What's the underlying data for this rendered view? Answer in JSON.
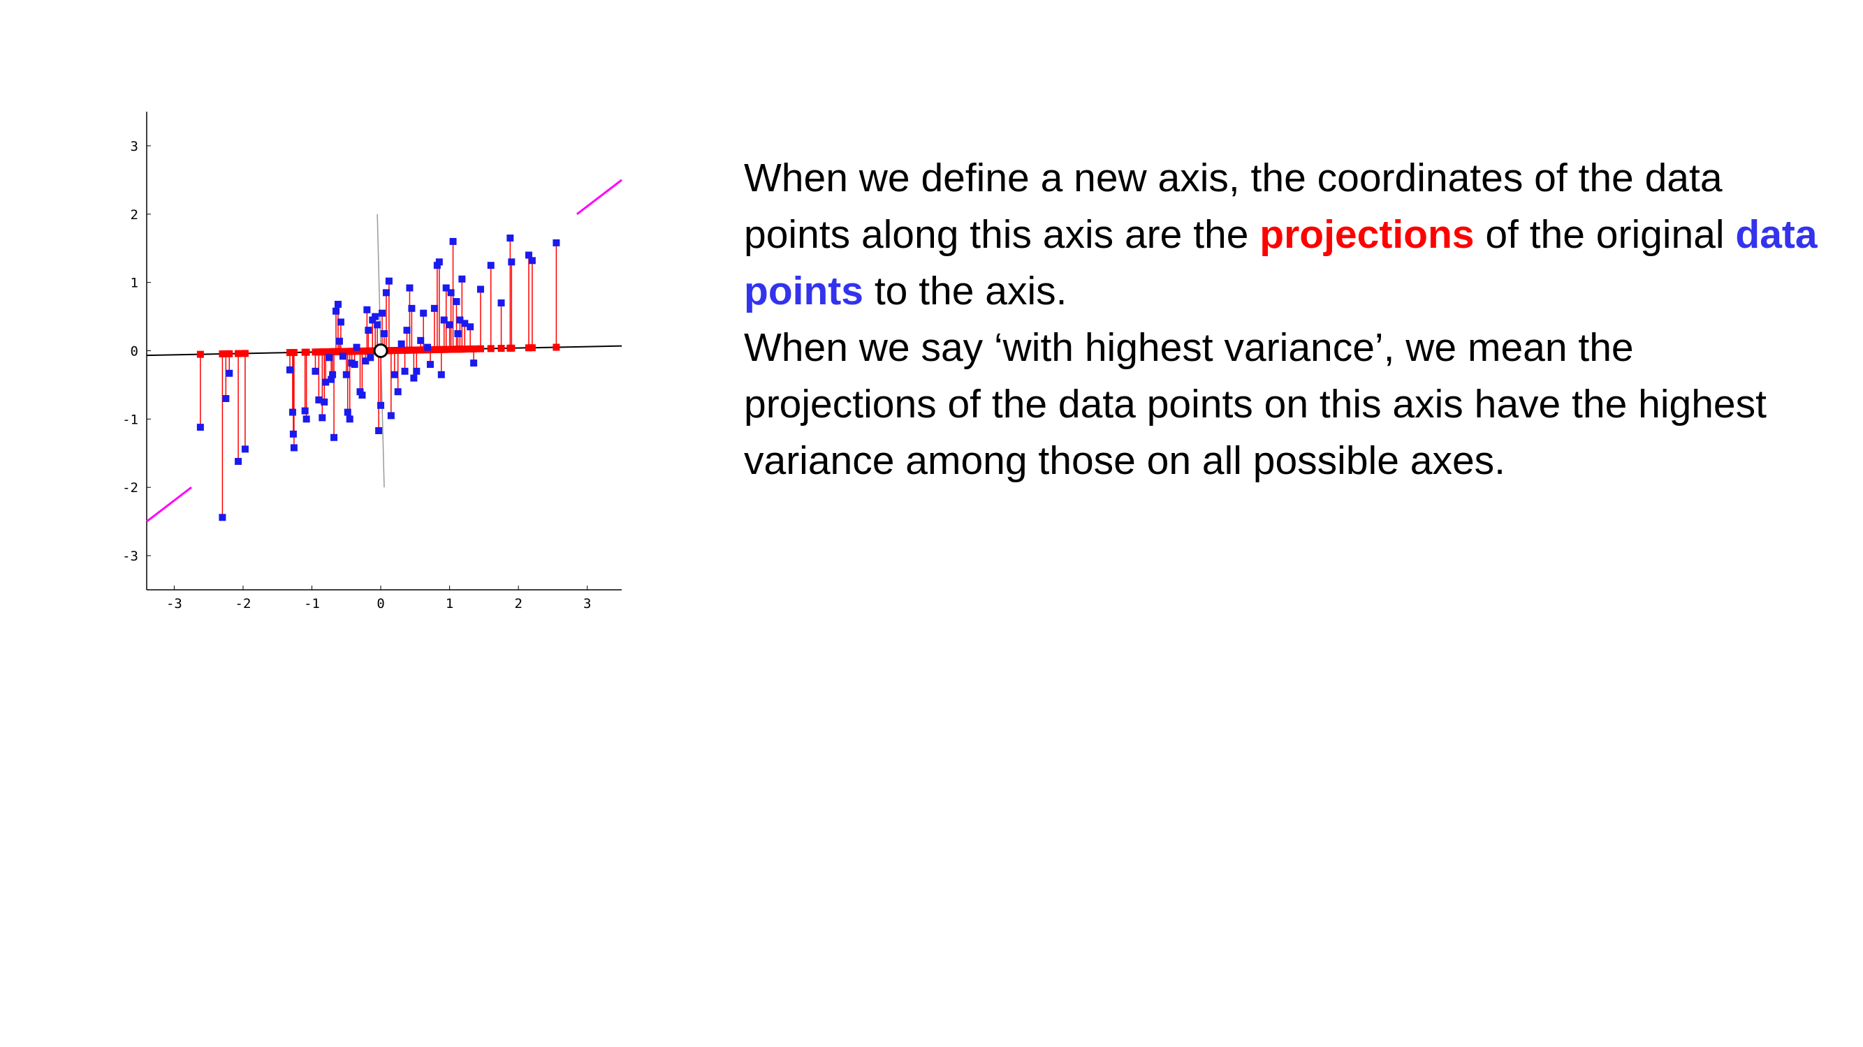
{
  "colors": {
    "data_point": "#1a1aee",
    "projection": "#ff0000",
    "axis_line": "#000000",
    "orthogonal_axis": "#999999",
    "direction_marker": "#ff00ff",
    "emphasis_red": "#ff0000",
    "emphasis_blue": "#3333ee"
  },
  "text": {
    "para1_a": "When we define a new axis, the coordinates of the data points along this axis are the ",
    "para1_projections": "projections",
    "para1_b": " of the original ",
    "para1_datapoints": "data points",
    "para1_c": " to the axis.",
    "para2": "When we say ‘with highest variance’, we mean the projections of the data points on this axis have the highest variance among those on all possible axes."
  },
  "chart_data": {
    "type": "scatter",
    "title": "",
    "xlabel": "",
    "ylabel": "",
    "xlim": [
      -3.4,
      3.5
    ],
    "ylim": [
      -3.5,
      3.5
    ],
    "xticks": [
      "-3",
      "-2",
      "-1",
      "0",
      "1",
      "2",
      "3"
    ],
    "yticks": [
      "3",
      "2",
      "1",
      "0",
      "-1",
      "-2",
      "-3"
    ],
    "grid": false,
    "new_axis_slope": 0.02,
    "center": [
      0,
      0
    ],
    "direction_markers": [
      {
        "from": [
          2.85,
          2.0
        ],
        "to": [
          3.5,
          2.5
        ]
      },
      {
        "from": [
          -3.4,
          -2.5
        ],
        "to": [
          -2.75,
          -2.0
        ]
      }
    ],
    "orthogonal_axis": {
      "from": [
        -0.05,
        2.0
      ],
      "to": [
        0.05,
        -2.0
      ]
    },
    "series": [
      {
        "points": [
          [
            -2.62,
            -1.12
          ],
          [
            -2.3,
            -2.44
          ],
          [
            -2.25,
            -0.7
          ],
          [
            -2.2,
            -0.33
          ],
          [
            -2.07,
            -1.62
          ],
          [
            -1.97,
            -1.44
          ],
          [
            -1.32,
            -0.28
          ],
          [
            -1.28,
            -0.9
          ],
          [
            -1.27,
            -1.22
          ],
          [
            -1.26,
            -1.42
          ],
          [
            -1.1,
            -0.88
          ],
          [
            -1.08,
            -1.0
          ],
          [
            -0.95,
            -0.3
          ],
          [
            -0.9,
            -0.72
          ],
          [
            -0.85,
            -0.98
          ],
          [
            -0.82,
            -0.75
          ],
          [
            -0.8,
            -0.46
          ],
          [
            -0.75,
            -0.1
          ],
          [
            -0.72,
            -0.42
          ],
          [
            -0.7,
            -0.35
          ],
          [
            -0.68,
            -1.27
          ],
          [
            -0.65,
            0.58
          ],
          [
            -0.62,
            0.68
          ],
          [
            -0.6,
            0.14
          ],
          [
            -0.58,
            0.42
          ],
          [
            -0.55,
            -0.08
          ],
          [
            -0.5,
            -0.35
          ],
          [
            -0.48,
            -0.9
          ],
          [
            -0.45,
            -1.0
          ],
          [
            -0.42,
            -0.18
          ],
          [
            -0.38,
            -0.2
          ],
          [
            -0.35,
            0.05
          ],
          [
            -0.3,
            -0.6
          ],
          [
            -0.27,
            -0.65
          ],
          [
            -0.22,
            -0.15
          ],
          [
            -0.2,
            0.6
          ],
          [
            -0.18,
            0.3
          ],
          [
            -0.15,
            -0.1
          ],
          [
            -0.12,
            0.45
          ],
          [
            -0.08,
            0.5
          ],
          [
            -0.05,
            0.38
          ],
          [
            -0.03,
            -1.17
          ],
          [
            0.0,
            -0.8
          ],
          [
            0.02,
            0.55
          ],
          [
            0.05,
            0.25
          ],
          [
            0.08,
            0.85
          ],
          [
            0.12,
            1.02
          ],
          [
            0.15,
            -0.95
          ],
          [
            0.2,
            -0.35
          ],
          [
            0.25,
            -0.6
          ],
          [
            0.3,
            0.1
          ],
          [
            0.35,
            -0.3
          ],
          [
            0.38,
            0.3
          ],
          [
            0.42,
            0.92
          ],
          [
            0.45,
            0.62
          ],
          [
            0.48,
            -0.4
          ],
          [
            0.52,
            -0.3
          ],
          [
            0.58,
            0.15
          ],
          [
            0.62,
            0.55
          ],
          [
            0.68,
            0.05
          ],
          [
            0.72,
            -0.2
          ],
          [
            0.78,
            0.62
          ],
          [
            0.82,
            1.25
          ],
          [
            0.85,
            1.3
          ],
          [
            0.88,
            -0.35
          ],
          [
            0.92,
            0.45
          ],
          [
            0.95,
            0.92
          ],
          [
            1.0,
            0.38
          ],
          [
            1.02,
            0.85
          ],
          [
            1.05,
            1.6
          ],
          [
            1.1,
            0.72
          ],
          [
            1.12,
            0.25
          ],
          [
            1.15,
            0.45
          ],
          [
            1.18,
            1.05
          ],
          [
            1.22,
            0.4
          ],
          [
            1.3,
            0.35
          ],
          [
            1.35,
            -0.18
          ],
          [
            1.45,
            0.9
          ],
          [
            1.6,
            1.25
          ],
          [
            1.75,
            0.7
          ],
          [
            1.88,
            1.65
          ],
          [
            1.9,
            1.3
          ],
          [
            2.15,
            1.4
          ],
          [
            2.2,
            1.32
          ],
          [
            2.55,
            1.58
          ]
        ]
      }
    ]
  }
}
